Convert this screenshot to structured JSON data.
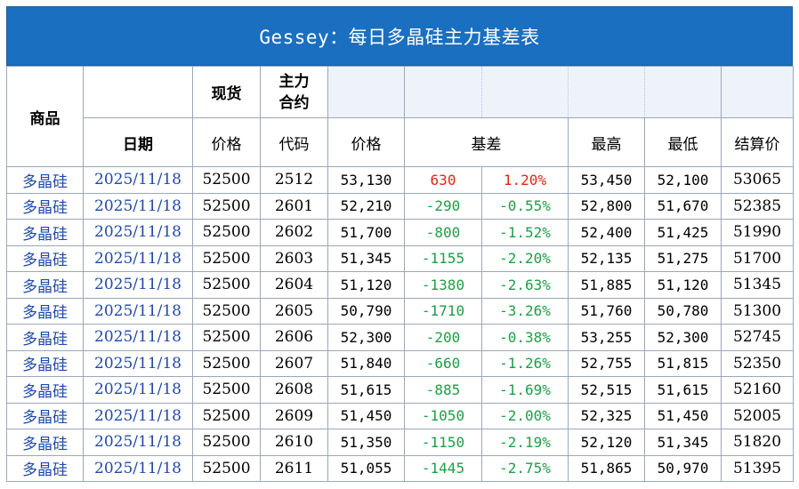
{
  "title": "Gessey：每日多晶硅主力基差表",
  "header": {
    "product": "商品",
    "spot": "现货",
    "main_contract": "主力\n合约",
    "date": "日期",
    "price": "价格",
    "code": "代码",
    "fut_price": "价格",
    "basis": "基差",
    "high": "最高",
    "low": "最低",
    "settle": "结算价"
  },
  "rows": [
    {
      "product": "多晶硅",
      "date": "2025/11/18",
      "spot": "52500",
      "code": "2512",
      "price": "53,130",
      "basis": "630",
      "pct": "1.20%",
      "high": "53,450",
      "low": "52,100",
      "settle": "53065",
      "sign": "pos"
    },
    {
      "product": "多晶硅",
      "date": "2025/11/18",
      "spot": "52500",
      "code": "2601",
      "price": "52,210",
      "basis": "-290",
      "pct": "-0.55%",
      "high": "52,800",
      "low": "51,670",
      "settle": "52385",
      "sign": "neg"
    },
    {
      "product": "多晶硅",
      "date": "2025/11/18",
      "spot": "52500",
      "code": "2602",
      "price": "51,700",
      "basis": "-800",
      "pct": "-1.52%",
      "high": "52,400",
      "low": "51,425",
      "settle": "51990",
      "sign": "neg"
    },
    {
      "product": "多晶硅",
      "date": "2025/11/18",
      "spot": "52500",
      "code": "2603",
      "price": "51,345",
      "basis": "-1155",
      "pct": "-2.20%",
      "high": "52,135",
      "low": "51,275",
      "settle": "51700",
      "sign": "neg"
    },
    {
      "product": "多晶硅",
      "date": "2025/11/18",
      "spot": "52500",
      "code": "2604",
      "price": "51,120",
      "basis": "-1380",
      "pct": "-2.63%",
      "high": "51,885",
      "low": "51,120",
      "settle": "51345",
      "sign": "neg"
    },
    {
      "product": "多晶硅",
      "date": "2025/11/18",
      "spot": "52500",
      "code": "2605",
      "price": "50,790",
      "basis": "-1710",
      "pct": "-3.26%",
      "high": "51,760",
      "low": "50,780",
      "settle": "51300",
      "sign": "neg"
    },
    {
      "product": "多晶硅",
      "date": "2025/11/18",
      "spot": "52500",
      "code": "2606",
      "price": "52,300",
      "basis": "-200",
      "pct": "-0.38%",
      "high": "53,255",
      "low": "52,300",
      "settle": "52745",
      "sign": "neg"
    },
    {
      "product": "多晶硅",
      "date": "2025/11/18",
      "spot": "52500",
      "code": "2607",
      "price": "51,840",
      "basis": "-660",
      "pct": "-1.26%",
      "high": "52,755",
      "low": "51,815",
      "settle": "52350",
      "sign": "neg"
    },
    {
      "product": "多晶硅",
      "date": "2025/11/18",
      "spot": "52500",
      "code": "2608",
      "price": "51,615",
      "basis": "-885",
      "pct": "-1.69%",
      "high": "52,515",
      "low": "51,615",
      "settle": "52160",
      "sign": "neg"
    },
    {
      "product": "多晶硅",
      "date": "2025/11/18",
      "spot": "52500",
      "code": "2609",
      "price": "51,450",
      "basis": "-1050",
      "pct": "-2.00%",
      "high": "52,325",
      "low": "51,450",
      "settle": "52005",
      "sign": "neg"
    },
    {
      "product": "多晶硅",
      "date": "2025/11/18",
      "spot": "52500",
      "code": "2610",
      "price": "51,350",
      "basis": "-1150",
      "pct": "-2.19%",
      "high": "52,120",
      "low": "51,345",
      "settle": "51820",
      "sign": "neg"
    },
    {
      "product": "多晶硅",
      "date": "2025/11/18",
      "spot": "52500",
      "code": "2611",
      "price": "51,055",
      "basis": "-1445",
      "pct": "-2.75%",
      "high": "51,865",
      "low": "50,970",
      "settle": "51395",
      "sign": "neg"
    }
  ],
  "colors": {
    "title_bg": "#1a6fc0",
    "positive": "#e0251b",
    "negative": "#1e9e46",
    "link_text": "#1f49a8"
  }
}
